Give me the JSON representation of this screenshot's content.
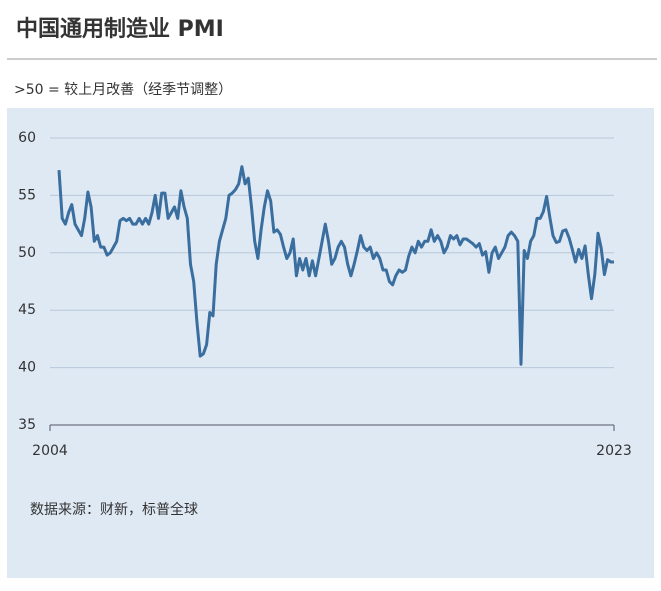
{
  "chart_data": {
    "type": "line",
    "title": "中国通用制造业 PMI",
    "subtitle": ">50 = 较上月改善（经季节调整）",
    "source": "数据来源：财新，标普全球",
    "color": "#3a6e9f",
    "grid": true,
    "ylim": [
      35,
      60
    ],
    "yticks": [
      35,
      40,
      45,
      50,
      55,
      60
    ],
    "categories": [
      "2004",
      null,
      null,
      null,
      null,
      null,
      null,
      null,
      null,
      null,
      null,
      null,
      null,
      null,
      null,
      null,
      null,
      null,
      null,
      null,
      null,
      null,
      null,
      null,
      null,
      null,
      null,
      null,
      null,
      null,
      null,
      null,
      null,
      null,
      null,
      null,
      null,
      null,
      null,
      null,
      null,
      null,
      null,
      null,
      null,
      null,
      null,
      null,
      null,
      null,
      null,
      null,
      null,
      null,
      null,
      null,
      null,
      null,
      null,
      null,
      null,
      null,
      null,
      null,
      null,
      null,
      null,
      null,
      null,
      null,
      null,
      null,
      null,
      null,
      null,
      null,
      null,
      null,
      null,
      null,
      null,
      null,
      null,
      null,
      null,
      null,
      null,
      null,
      null,
      null,
      null,
      null,
      null,
      null,
      null,
      null,
      null,
      null,
      null,
      null,
      null,
      null,
      null,
      null,
      null,
      null,
      null,
      null,
      null,
      null,
      null,
      null,
      null,
      null,
      null,
      null,
      null,
      null,
      null,
      null,
      null,
      null,
      null,
      null,
      null,
      null,
      null,
      null,
      null,
      null,
      null,
      null,
      null,
      null,
      null,
      null,
      null,
      null,
      null,
      null,
      null,
      null,
      null,
      null,
      null,
      null,
      null,
      null,
      null,
      null,
      null,
      null,
      null,
      null,
      null,
      null,
      null,
      null,
      null,
      null,
      null,
      null,
      null,
      null,
      null,
      null,
      null,
      null,
      null,
      null,
      null,
      null,
      null,
      "2023"
    ],
    "values": [
      57.2,
      53,
      52.5,
      53.5,
      54.2,
      52.5,
      52,
      51.5,
      53,
      55.3,
      54,
      51,
      51.5,
      50.5,
      50.5,
      49.8,
      50,
      50.5,
      51,
      52.8,
      53,
      52.8,
      53,
      52.5,
      52.5,
      53,
      52.5,
      53,
      52.5,
      53.5,
      55,
      53,
      55.2,
      55.2,
      53,
      53.5,
      54,
      53,
      55.4,
      54,
      53,
      49,
      47.5,
      44,
      41,
      41.2,
      42,
      44.8,
      44.5,
      49,
      51,
      52,
      53,
      55,
      55.2,
      55.5,
      56,
      57.5,
      56,
      56.5,
      54,
      51,
      49.5,
      52,
      54,
      55.4,
      54.5,
      51.8,
      52,
      51.6,
      50.5,
      49.5,
      50,
      51.2,
      48,
      49.5,
      48.5,
      49.5,
      48,
      49.3,
      48,
      49.5,
      51,
      52.5,
      51,
      49,
      49.5,
      50.5,
      51,
      50.5,
      49,
      48,
      49,
      50.2,
      51.5,
      50.5,
      50.2,
      50.5,
      49.5,
      50,
      49.5,
      48.5,
      48.5,
      47.5,
      47.2,
      48,
      48.5,
      48.3,
      48.5,
      49.7,
      50.5,
      50,
      51,
      50.5,
      51,
      51,
      52,
      51,
      51.5,
      51,
      50,
      50.5,
      51.5,
      51.2,
      51.5,
      50.7,
      51.2,
      51.2,
      51,
      50.8,
      50.5,
      50.8,
      49.8,
      50.1,
      48.3,
      50,
      50.5,
      49.5,
      50,
      50.5,
      51.5,
      51.8,
      51.5,
      51,
      40.3,
      50.2,
      49.5,
      51,
      51.5,
      53,
      53,
      53.6,
      54.9,
      53.1,
      51.5,
      50.9,
      51,
      51.9,
      52,
      51.3,
      50.3,
      49.2,
      50.3,
      49.5,
      50.6,
      48.1,
      46,
      48.1,
      51.7,
      50.4,
      48.1,
      49.4,
      49.2,
      49.2
    ]
  }
}
